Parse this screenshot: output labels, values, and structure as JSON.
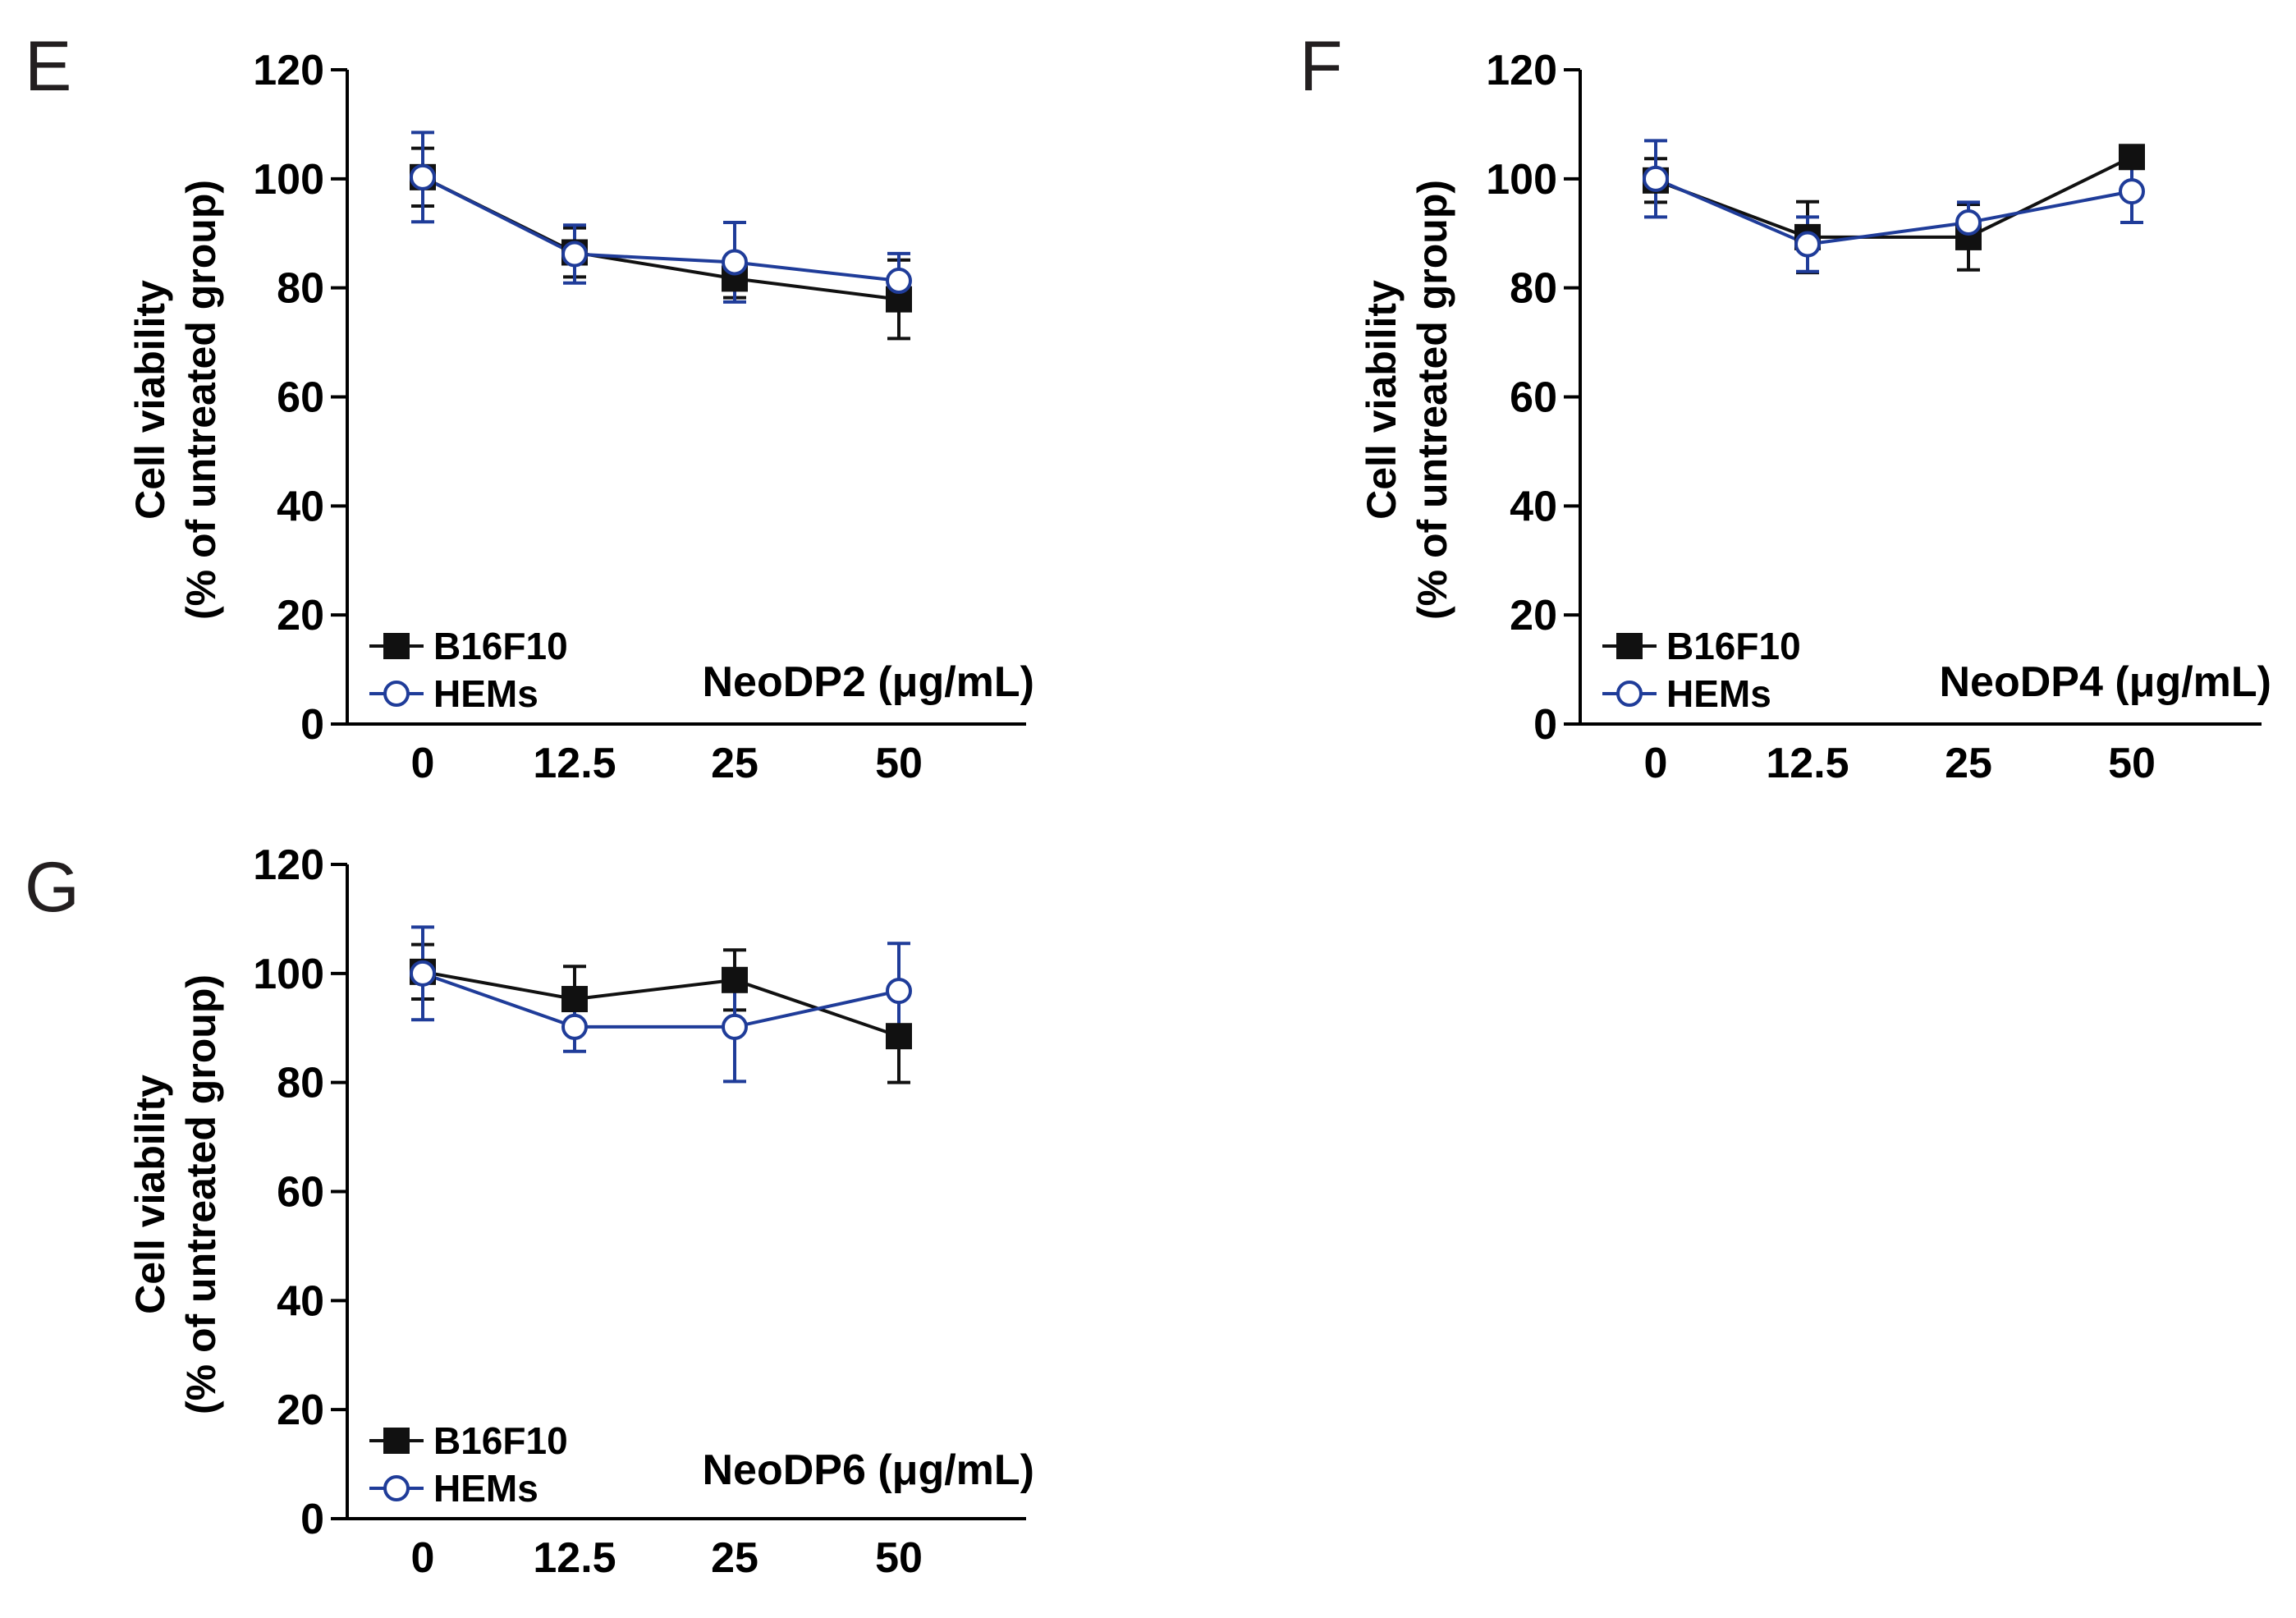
{
  "colors": {
    "b16f10": "#111111",
    "hems": "#1f3c99",
    "axis": "#000000"
  },
  "chart_data": [
    {
      "panel": "E",
      "type": "line",
      "categories": [
        "0",
        "12.5",
        "25",
        "50"
      ],
      "series": [
        {
          "name": "B16F10",
          "marker": "filled-square",
          "values": [
            100.3,
            86.5,
            81.7,
            77.9
          ],
          "errors": [
            5.3,
            4.5,
            3.5,
            7.2
          ]
        },
        {
          "name": "HEMs",
          "marker": "open-circle",
          "values": [
            100.3,
            86.2,
            84.7,
            81.3
          ],
          "errors": [
            8.2,
            5.3,
            7.3,
            5.0
          ]
        }
      ],
      "xlabel": "NeoDP2 (μg/mL)",
      "ylabel": [
        "Cell viability",
        "(% of untreated group)"
      ],
      "yticks": [
        "0",
        "20",
        "40",
        "60",
        "80",
        "100",
        "120"
      ],
      "ylim": [
        0,
        120
      ]
    },
    {
      "panel": "F",
      "type": "line",
      "categories": [
        "0",
        "12.5",
        "25",
        "50"
      ],
      "series": [
        {
          "name": "B16F10",
          "marker": "filled-square",
          "values": [
            99.7,
            89.3,
            89.3,
            104.0
          ],
          "errors": [
            4.0,
            6.5,
            6.0,
            1.5
          ]
        },
        {
          "name": "HEMs",
          "marker": "open-circle",
          "values": [
            100.0,
            88.0,
            92.0,
            97.7
          ],
          "errors": [
            7.0,
            5.0,
            3.7,
            5.7
          ]
        }
      ],
      "xlabel": "NeoDP4 (μg/mL)",
      "ylabel": [
        "Cell viability",
        "(% of untreated group)"
      ],
      "yticks": [
        "0",
        "20",
        "40",
        "60",
        "80",
        "100",
        "120"
      ],
      "ylim": [
        0,
        120
      ]
    },
    {
      "panel": "G",
      "type": "line",
      "categories": [
        "0",
        "12.5",
        "25",
        "50"
      ],
      "series": [
        {
          "name": "B16F10",
          "marker": "filled-square",
          "values": [
            100.3,
            95.3,
            98.8,
            88.5
          ],
          "errors": [
            5.0,
            6.0,
            5.5,
            8.5
          ]
        },
        {
          "name": "HEMs",
          "marker": "open-circle",
          "values": [
            100.0,
            90.2,
            90.2,
            96.8
          ],
          "errors": [
            8.5,
            4.5,
            10.0,
            8.7
          ]
        }
      ],
      "xlabel": "NeoDP6 (μg/mL)",
      "ylabel": [
        "Cell viability",
        "(% of untreated group)"
      ],
      "yticks": [
        "0",
        "20",
        "40",
        "60",
        "80",
        "100",
        "120"
      ],
      "ylim": [
        0,
        120
      ]
    }
  ]
}
